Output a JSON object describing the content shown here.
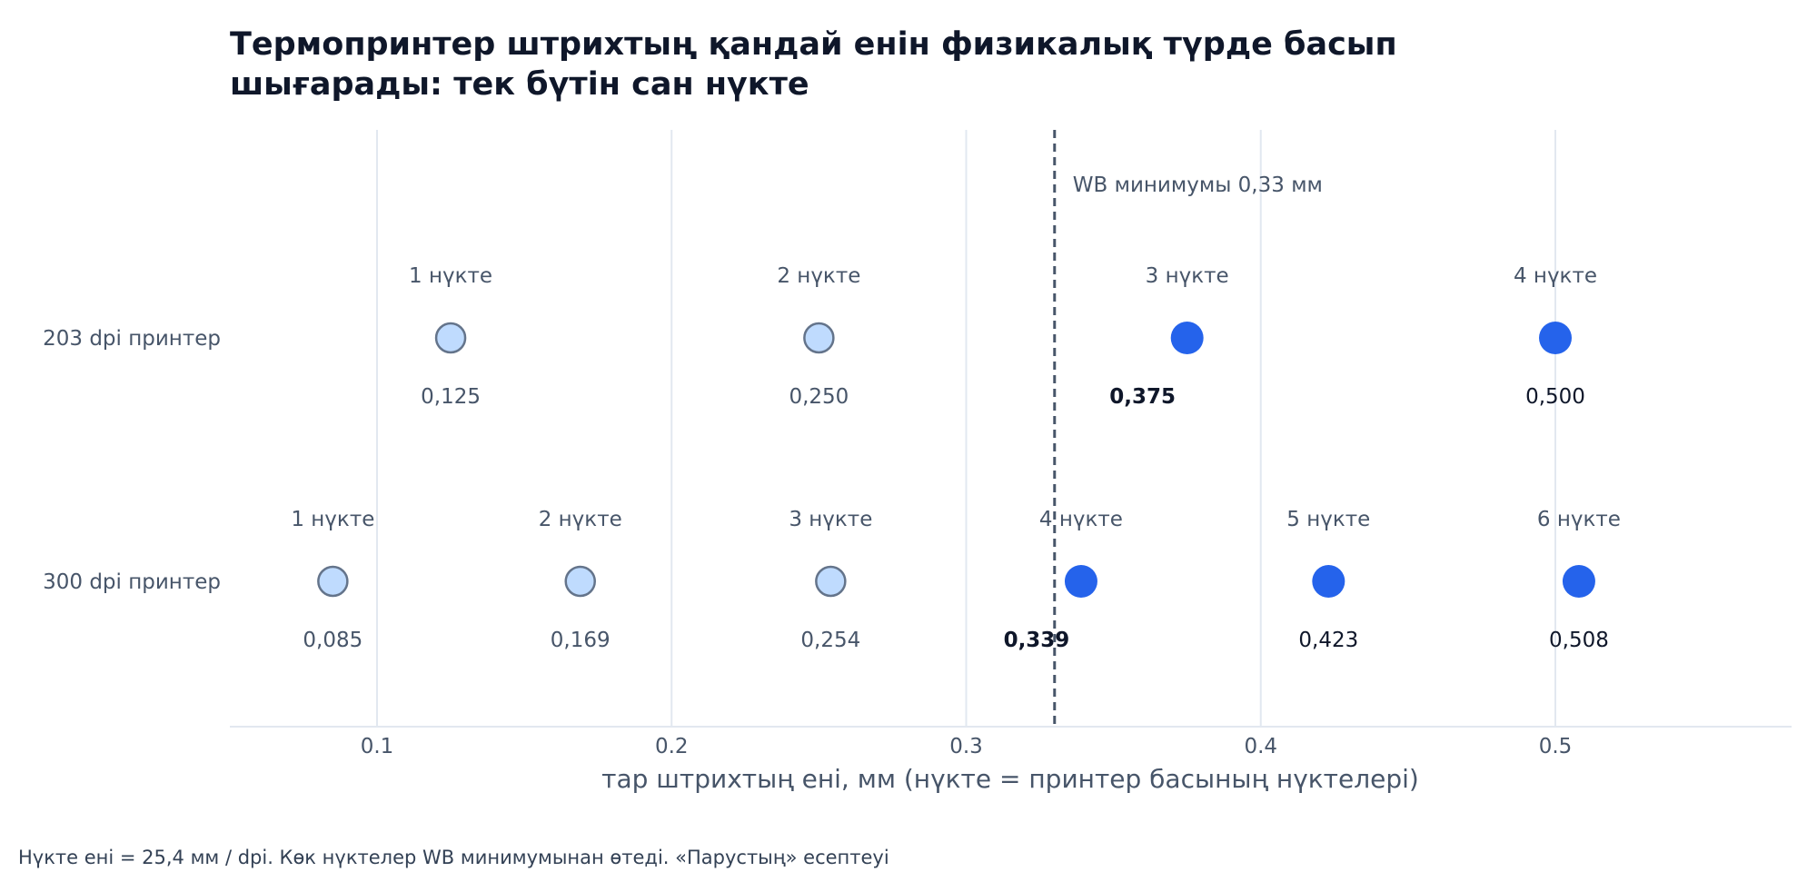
{
  "chart_data": {
    "type": "scatter",
    "title": "Термопринтер штрихтың қандай енін физикалық түрде басып шығарады: тек бүтін сан нүкте",
    "title_lines": [
      "Термопринтер штрихтың қандай енін физикалық түрде басып",
      "шығарады: тек бүтін сан нүкте"
    ],
    "xlabel": "тар штрихтың ені, мм (нүкте = принтер басының нүктелері)",
    "xlim": [
      0.05,
      0.58
    ],
    "xticks": [
      0.1,
      0.2,
      0.3,
      0.4,
      0.5
    ],
    "xtick_labels": [
      "0.1",
      "0.2",
      "0.3",
      "0.4",
      "0.5"
    ],
    "grid": "vertical",
    "threshold": {
      "x": 0.33,
      "label": "WB минимумы 0,33 мм"
    },
    "rows": [
      {
        "name": "203 dpi принтер",
        "points": [
          {
            "dots": "1 нүкте",
            "x": 0.125,
            "label": "0,125",
            "passes": false
          },
          {
            "dots": "2 нүкте",
            "x": 0.25,
            "label": "0,250",
            "passes": false
          },
          {
            "dots": "3 нүкте",
            "x": 0.375,
            "label": "0,375",
            "passes": true,
            "first_pass": true
          },
          {
            "dots": "4 нүкте",
            "x": 0.5,
            "label": "0,500",
            "passes": true
          }
        ]
      },
      {
        "name": "300 dpi принтер",
        "points": [
          {
            "dots": "1 нүкте",
            "x": 0.085,
            "label": "0,085",
            "passes": false
          },
          {
            "dots": "2 нүкте",
            "x": 0.169,
            "label": "0,169",
            "passes": false
          },
          {
            "dots": "3 нүкте",
            "x": 0.254,
            "label": "0,254",
            "passes": false
          },
          {
            "dots": "4 нүкте",
            "x": 0.339,
            "label": "0,339",
            "passes": true,
            "first_pass": true
          },
          {
            "dots": "5 нүкте",
            "x": 0.423,
            "label": "0,423",
            "passes": true
          },
          {
            "dots": "6 нүкте",
            "x": 0.508,
            "label": "0,508",
            "passes": true
          }
        ]
      }
    ],
    "colors": {
      "pass_fill": "#2563eb",
      "fail_fill": "#bfdbfe",
      "fail_stroke": "#64748b",
      "grid": "#e2e8f0",
      "threshold": "#475569"
    }
  },
  "footnote": "Нүкте ені = 25,4 мм / dpi. Көк нүктелер WB минимумынан өтеді. «Парустың» есептеуі"
}
